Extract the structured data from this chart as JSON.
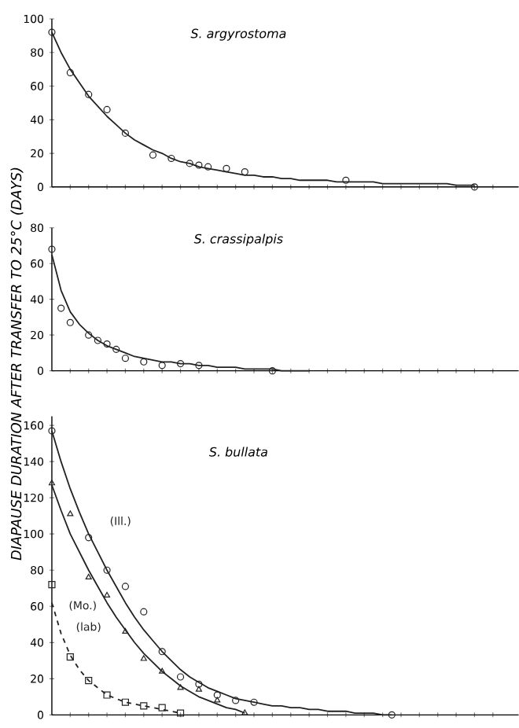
{
  "chart_data": [
    {
      "type": "line",
      "title": "S. argyrostoma",
      "ylim": [
        0,
        100
      ],
      "yticks": [
        0,
        20,
        40,
        60,
        80,
        100
      ],
      "tick_labels": "y",
      "categories": [
        null,
        null,
        null,
        null,
        null,
        null,
        null,
        null,
        null,
        null,
        null,
        null,
        null,
        null,
        null,
        null,
        null,
        null,
        null,
        null,
        null,
        null,
        null,
        null,
        null,
        null,
        null,
        null,
        null,
        null,
        null,
        null,
        null,
        null,
        null,
        null,
        null,
        null,
        null,
        null,
        null,
        null,
        null,
        null,
        null,
        null,
        null,
        null,
        null,
        null,
        null
      ],
      "series": [
        {
          "type": "scatter",
          "marker": "circle",
          "color": "#222222",
          "values": [
            92,
            null,
            68,
            null,
            55,
            null,
            46,
            null,
            32,
            null,
            null,
            19,
            null,
            17,
            null,
            14,
            13,
            12,
            null,
            11,
            null,
            9,
            null,
            null,
            null,
            null,
            null,
            null,
            null,
            null,
            null,
            null,
            4,
            null,
            null,
            null,
            null,
            null,
            null,
            null,
            null,
            null,
            null,
            null,
            null,
            null,
            0,
            null,
            null,
            null,
            null
          ]
        },
        {
          "marker": "none",
          "line_style": "solid",
          "color": "#222222",
          "values": [
            92,
            80,
            70,
            62,
            54,
            48,
            42,
            37,
            32,
            28,
            25,
            22,
            20,
            17,
            15,
            14,
            12,
            11,
            10,
            9,
            8,
            7,
            7,
            6,
            6,
            5,
            5,
            4,
            4,
            4,
            4,
            3,
            3,
            3,
            3,
            3,
            2,
            2,
            2,
            2,
            2,
            2,
            2,
            2,
            1,
            1,
            1,
            null,
            null,
            null,
            null
          ]
        }
      ]
    },
    {
      "type": "line",
      "title": "S. crassipalpis",
      "ylabel": "DIAPAUSE  DURATION  AFTER  TRANSFER  TO  25°C  (DAYS)",
      "ylim": [
        0,
        80
      ],
      "yticks": [
        0,
        20,
        40,
        60,
        80
      ],
      "tick_labels": "y",
      "categories": [
        null,
        null,
        null,
        null,
        null,
        null,
        null,
        null,
        null,
        null,
        null,
        null,
        null,
        null,
        null,
        null,
        null,
        null,
        null,
        null,
        null,
        null,
        null,
        null,
        null,
        null,
        null,
        null,
        null,
        null,
        null,
        null,
        null,
        null,
        null,
        null,
        null,
        null,
        null,
        null,
        null,
        null,
        null,
        null,
        null,
        null,
        null,
        null,
        null,
        null,
        null
      ],
      "series": [
        {
          "type": "scatter",
          "marker": "circle",
          "color": "#222222",
          "values": [
            68,
            35,
            27,
            null,
            20,
            17,
            15,
            12,
            7,
            null,
            5,
            null,
            3,
            null,
            4,
            null,
            3,
            null,
            null,
            null,
            null,
            null,
            null,
            null,
            0,
            null,
            null,
            null,
            null,
            null,
            null,
            null,
            null,
            null,
            null,
            null,
            null,
            null,
            null,
            null,
            null,
            null,
            null,
            null,
            null,
            null,
            null,
            null,
            null,
            null,
            null
          ]
        },
        {
          "marker": "none",
          "line_style": "solid",
          "color": "#222222",
          "values": [
            65,
            45,
            33,
            26,
            21,
            17,
            14,
            12,
            10,
            8,
            7,
            6,
            5,
            5,
            4,
            4,
            3,
            3,
            2,
            2,
            2,
            1,
            1,
            1,
            1,
            0,
            0,
            0,
            0,
            null,
            null,
            null,
            null,
            null,
            null,
            null,
            null,
            null,
            null,
            null,
            null,
            null,
            null,
            null,
            null,
            null,
            null,
            null,
            null,
            null,
            null
          ]
        }
      ]
    },
    {
      "type": "line",
      "title": "S. bullata",
      "ylim": [
        0,
        165
      ],
      "yticks": [
        0,
        20,
        40,
        60,
        80,
        100,
        120,
        140,
        160
      ],
      "tick_labels": "y",
      "categories": [
        null,
        null,
        null,
        null,
        null,
        null,
        null,
        null,
        null,
        null,
        null,
        null,
        null,
        null,
        null,
        null,
        null,
        null,
        null,
        null,
        null,
        null,
        null,
        null,
        null,
        null,
        null,
        null,
        null,
        null,
        null,
        null,
        null,
        null,
        null,
        null,
        null,
        null,
        null,
        null,
        null,
        null,
        null,
        null,
        null,
        null,
        null,
        null,
        null,
        null,
        null
      ],
      "series": [
        {
          "type": "scatter",
          "marker": "circle",
          "color": "#222222",
          "values": [
            157,
            null,
            null,
            null,
            98,
            null,
            80,
            null,
            71,
            null,
            57,
            null,
            35,
            null,
            21,
            null,
            17,
            null,
            11,
            null,
            8,
            null,
            7,
            null,
            null,
            null,
            null,
            null,
            null,
            null,
            null,
            null,
            null,
            null,
            null,
            null,
            null,
            0,
            null,
            null,
            null,
            null,
            null,
            null,
            null,
            null,
            null,
            null,
            null,
            null,
            null
          ]
        },
        {
          "type": "scatter",
          "marker": "triangle",
          "color": "#222222",
          "values": [
            128,
            null,
            111,
            null,
            76,
            null,
            66,
            null,
            46,
            null,
            31,
            null,
            24,
            null,
            15,
            null,
            14,
            null,
            8,
            null,
            null,
            1,
            null,
            null,
            null,
            null,
            null,
            null,
            null,
            null,
            null,
            null,
            null,
            null,
            null,
            null,
            null,
            null,
            null,
            null,
            null,
            null,
            null,
            null,
            null,
            null,
            null,
            null,
            null,
            null,
            null
          ]
        },
        {
          "type": "scatter",
          "marker": "square",
          "color": "#222222",
          "values": [
            72,
            null,
            32,
            null,
            19,
            null,
            11,
            null,
            7,
            null,
            5,
            null,
            4,
            null,
            1,
            null,
            null,
            null,
            null,
            null,
            null,
            null,
            null,
            null,
            null,
            null,
            null,
            null,
            null,
            null,
            null,
            null,
            null,
            null,
            null,
            null,
            null,
            null,
            null,
            null,
            null,
            null,
            null,
            null,
            null,
            null,
            null,
            null,
            null,
            null,
            null
          ]
        },
        {
          "name": "(Ill.)",
          "marker": "none",
          "line_style": "solid",
          "color": "#222222",
          "values": [
            157,
            140,
            125,
            112,
            100,
            90,
            80,
            71,
            62,
            54,
            47,
            41,
            35,
            30,
            25,
            21,
            18,
            15,
            13,
            11,
            9,
            8,
            7,
            6,
            5,
            5,
            4,
            4,
            3,
            3,
            2,
            2,
            2,
            1,
            1,
            1,
            0,
            0,
            null,
            null,
            null,
            null,
            null,
            null,
            null,
            null,
            null,
            null,
            null,
            null,
            null
          ]
        },
        {
          "name": "(Mo.)",
          "marker": "none",
          "line_style": "solid",
          "color": "#222222",
          "values": [
            127,
            113,
            100,
            90,
            80,
            71,
            62,
            54,
            47,
            40,
            34,
            29,
            24,
            20,
            16,
            13,
            10,
            8,
            6,
            4,
            3,
            1,
            null,
            null,
            null,
            null,
            null,
            null,
            null,
            null,
            null,
            null,
            null,
            null,
            null,
            null,
            null,
            null,
            null,
            null,
            null,
            null,
            null,
            null,
            null,
            null,
            null,
            null,
            null,
            null,
            null
          ]
        },
        {
          "name": "(lab)",
          "marker": "none",
          "line_style": "dashed",
          "color": "#222222",
          "values": [
            62,
            45,
            33,
            25,
            19,
            15,
            11,
            9,
            7,
            6,
            5,
            4,
            3,
            2,
            1,
            null,
            null,
            null,
            null,
            null,
            null,
            null,
            null,
            null,
            null,
            null,
            null,
            null,
            null,
            null,
            null,
            null,
            null,
            null,
            null,
            null,
            null,
            null,
            null,
            null,
            null,
            null,
            null,
            null,
            null,
            null,
            null,
            null,
            null,
            null,
            null
          ]
        }
      ]
    }
  ]
}
